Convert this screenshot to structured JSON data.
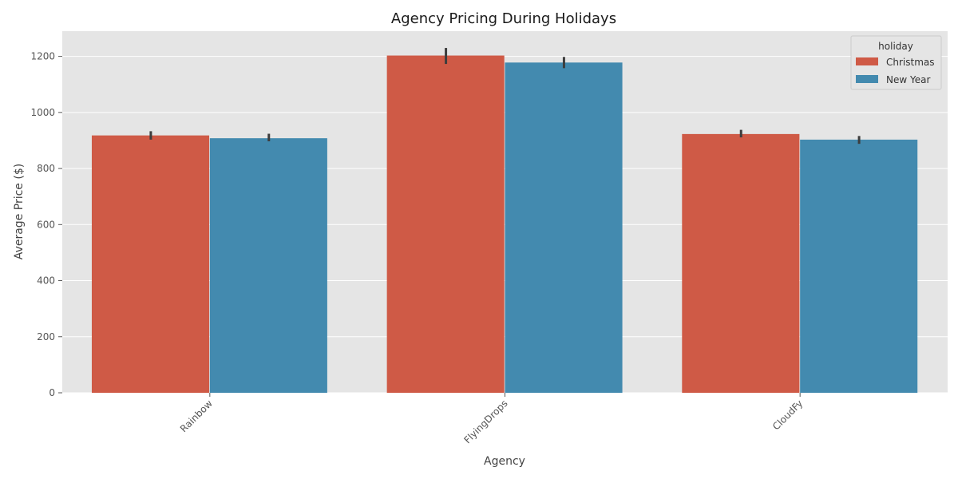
{
  "chart_data": {
    "type": "bar",
    "title": "Agency Pricing During Holidays",
    "xlabel": "Agency",
    "ylabel": "Average Price ($)",
    "categories": [
      "Rainbow",
      "FlyingDrops",
      "CloudFy"
    ],
    "series": [
      {
        "name": "Christmas",
        "color": "#cf5a46",
        "values": [
          918,
          1203,
          923
        ],
        "error_low": [
          903,
          1173,
          911
        ],
        "error_high": [
          933,
          1230,
          938
        ]
      },
      {
        "name": "New Year",
        "color": "#438aaf",
        "values": [
          908,
          1178,
          903
        ],
        "error_low": [
          897,
          1158,
          888
        ],
        "error_high": [
          924,
          1198,
          916
        ]
      }
    ],
    "ylim": [
      0,
      1290
    ],
    "yticks": [
      0,
      200,
      400,
      600,
      800,
      1000,
      1200
    ],
    "grid": true,
    "legend": {
      "title": "holiday",
      "placement": "top-right"
    },
    "colors": {
      "background": "#e5e5e5",
      "grid": "#ffffff",
      "error_bar": "#3d3d3d"
    }
  }
}
